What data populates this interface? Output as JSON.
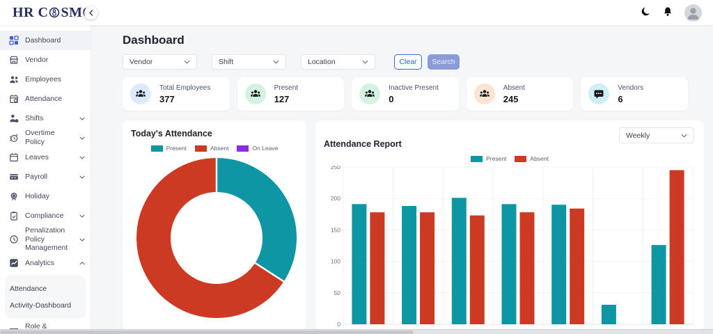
{
  "brand": {
    "part1": "HR",
    "part2_pre": "C",
    "part2_post": "SMO"
  },
  "topbar": {
    "icons": [
      "dark-mode-moon",
      "notification-bell",
      "user-avatar"
    ]
  },
  "sidebar": {
    "items": [
      {
        "label": "Dashboard",
        "icon": "dashboard-grid",
        "chevron": "none",
        "active": true
      },
      {
        "label": "Vendor",
        "icon": "storefront",
        "chevron": "none"
      },
      {
        "label": "Employees",
        "icon": "people",
        "chevron": "none"
      },
      {
        "label": "Attendance",
        "icon": "calendar-check",
        "chevron": "none"
      },
      {
        "label": "Shifts",
        "icon": "person-clock",
        "chevron": "down"
      },
      {
        "label": "Overtime Policy",
        "icon": "alarm-clock",
        "chevron": "down"
      },
      {
        "label": "Leaves",
        "icon": "calendar",
        "chevron": "down"
      },
      {
        "label": "Payroll",
        "icon": "payment-card",
        "chevron": "down"
      },
      {
        "label": "Holiday",
        "icon": "ferris-wheel",
        "chevron": "none"
      },
      {
        "label": "Compliance",
        "icon": "clipboard-check",
        "chevron": "down"
      },
      {
        "label": "Penalization Policy Management",
        "icon": "clock",
        "chevron": "down",
        "twoline": true
      },
      {
        "label": "Analytics",
        "icon": "analytics-chart",
        "chevron": "up",
        "children": [
          "Attendance",
          "Activity-Dashboard"
        ]
      },
      {
        "label": "Role & Permissions",
        "icon": "list-lines",
        "chevron": "none"
      }
    ]
  },
  "header": {
    "title": "Dashboard"
  },
  "filters": {
    "dropdowns": [
      "Vendor",
      "Shift",
      "Location"
    ],
    "clear_label": "Clear",
    "search_label": "Search"
  },
  "stats": [
    {
      "label": "Total Employees",
      "value": "377",
      "icon": "people-group",
      "circle_color": "#dbeafe"
    },
    {
      "label": "Present",
      "value": "127",
      "icon": "people-group",
      "circle_color": "#d5f2e0"
    },
    {
      "label": "Inactive Present",
      "value": "0",
      "icon": "people-group",
      "circle_color": "#d5f2e0"
    },
    {
      "label": "Absent",
      "value": "245",
      "icon": "people-group",
      "circle_color": "#fde4d0"
    },
    {
      "label": "Vendors",
      "value": "6",
      "icon": "chat-bubble",
      "circle_color": "#cfeef6"
    }
  ],
  "chart_data": [
    {
      "type": "pie",
      "subtype": "donut",
      "title": "Today's Attendance",
      "labels": [
        "Present",
        "Absent",
        "On Leave"
      ],
      "values": [
        127,
        245,
        0
      ],
      "colors": [
        "#0f96a5",
        "#cd3a23",
        "#8b2be2"
      ],
      "legend_position": "top"
    },
    {
      "type": "bar",
      "title": "Attendance Report",
      "period_selector": "Weekly",
      "categories": [
        "",
        "",
        "",
        "",
        "",
        "",
        ""
      ],
      "series": [
        {
          "name": "Present",
          "color": "#0f96a5",
          "values": [
            191,
            188,
            201,
            191,
            190,
            31,
            126
          ]
        },
        {
          "name": "Absent",
          "color": "#cd3a23",
          "values": [
            178,
            178,
            173,
            178,
            184,
            0,
            245
          ]
        }
      ],
      "ylim": [
        0,
        250
      ],
      "yticks": [
        0,
        50,
        100,
        150,
        200,
        250
      ],
      "grid": true,
      "legend_position": "top"
    }
  ]
}
